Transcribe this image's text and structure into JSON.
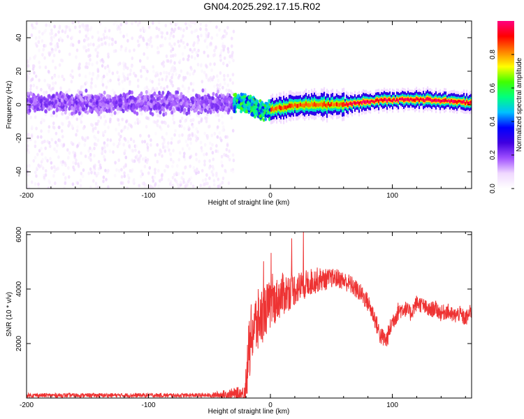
{
  "title": "GN04.2025.292.17.15.R02",
  "chart_data": [
    {
      "type": "heatmap",
      "xlabel": "Height of straight line (km)",
      "ylabel": "Frequency (Hz)",
      "xlim": [
        -200,
        165
      ],
      "ylim": [
        -50,
        50
      ],
      "x_ticks": [
        -200,
        -100,
        0,
        100
      ],
      "y_ticks": [
        -40,
        -20,
        0,
        20,
        40
      ],
      "colorbar": {
        "label": "Normalized spectral amplitude",
        "range": [
          0,
          1
        ],
        "ticks": [
          0.0,
          0.2,
          0.4,
          0.6,
          0.8
        ],
        "colormap": [
          "#ffffff",
          "#f0d8ff",
          "#a050ff",
          "#4000e0",
          "#0000ff",
          "#00c0ff",
          "#00ff80",
          "#40ff00",
          "#ffff00",
          "#ff8000",
          "#ff0000",
          "#ff0080"
        ]
      },
      "description_of_regions": [
        {
          "x_range": [
            -200,
            -30
          ],
          "signal": "broad noisy band",
          "band_halfwidth_hz": 8,
          "scatter_halfwidth_hz": 50,
          "typical_amplitude": 0.12
        },
        {
          "x_range": [
            -30,
            0
          ],
          "signal": "narrowing band",
          "band_halfwidth_hz": 6,
          "typical_amplitude": 0.35
        },
        {
          "x_range": [
            0,
            60
          ],
          "signal": "narrow line near 0 Hz",
          "band_halfwidth_hz": 2,
          "typical_amplitude": 0.8
        },
        {
          "x_range": [
            60,
            165
          ],
          "signal": "narrow line ~1-3 Hz",
          "band_halfwidth_hz": 1.5,
          "typical_amplitude": 0.9
        }
      ],
      "ridge_points": [
        {
          "x": -20,
          "f": 1
        },
        {
          "x": -5,
          "f": -4
        },
        {
          "x": 5,
          "f": -2
        },
        {
          "x": 25,
          "f": 0
        },
        {
          "x": 45,
          "f": 0
        },
        {
          "x": 60,
          "f": 0
        },
        {
          "x": 80,
          "f": 2
        },
        {
          "x": 100,
          "f": 3
        },
        {
          "x": 130,
          "f": 3
        },
        {
          "x": 165,
          "f": 1
        }
      ]
    },
    {
      "type": "line",
      "xlabel": "Height of straight line (km)",
      "ylabel": "SNR (10 * v/v)",
      "xlim": [
        -200,
        165
      ],
      "ylim": [
        0,
        6100
      ],
      "x_ticks": [
        -200,
        -100,
        0,
        100
      ],
      "y_ticks": [
        2000,
        4000,
        6000
      ],
      "series": [
        {
          "name": "SNR",
          "color": "#ee3333",
          "x": [
            -200,
            -150,
            -100,
            -50,
            -22,
            -20,
            -18,
            -15,
            -10,
            -5,
            0,
            5,
            10,
            15,
            20,
            25,
            30,
            35,
            40,
            45,
            50,
            55,
            60,
            65,
            70,
            75,
            80,
            85,
            90,
            95,
            100,
            105,
            110,
            115,
            120,
            125,
            130,
            135,
            140,
            145,
            150,
            155,
            160,
            165
          ],
          "values": [
            100,
            100,
            100,
            100,
            150,
            600,
            1500,
            2500,
            2800,
            3200,
            3400,
            3600,
            3800,
            3900,
            4000,
            4100,
            4200,
            4300,
            4350,
            4350,
            4400,
            4400,
            4300,
            4200,
            4000,
            3800,
            3500,
            3000,
            2300,
            2100,
            2800,
            3200,
            3300,
            3100,
            3500,
            3400,
            3200,
            3300,
            3100,
            3200,
            3000,
            3100,
            2900,
            3200
          ],
          "noise_amplitude": [
            80,
            80,
            80,
            80,
            300,
            800,
            1200,
            1200,
            1200,
            1000,
            900,
            800,
            800,
            700,
            600,
            600,
            500,
            500,
            450,
            400,
            350,
            350,
            350,
            350,
            350,
            350,
            350,
            350,
            350,
            350,
            350,
            350,
            300,
            300,
            300,
            300,
            300,
            300,
            300,
            300,
            300,
            300,
            300,
            300
          ]
        }
      ]
    }
  ]
}
